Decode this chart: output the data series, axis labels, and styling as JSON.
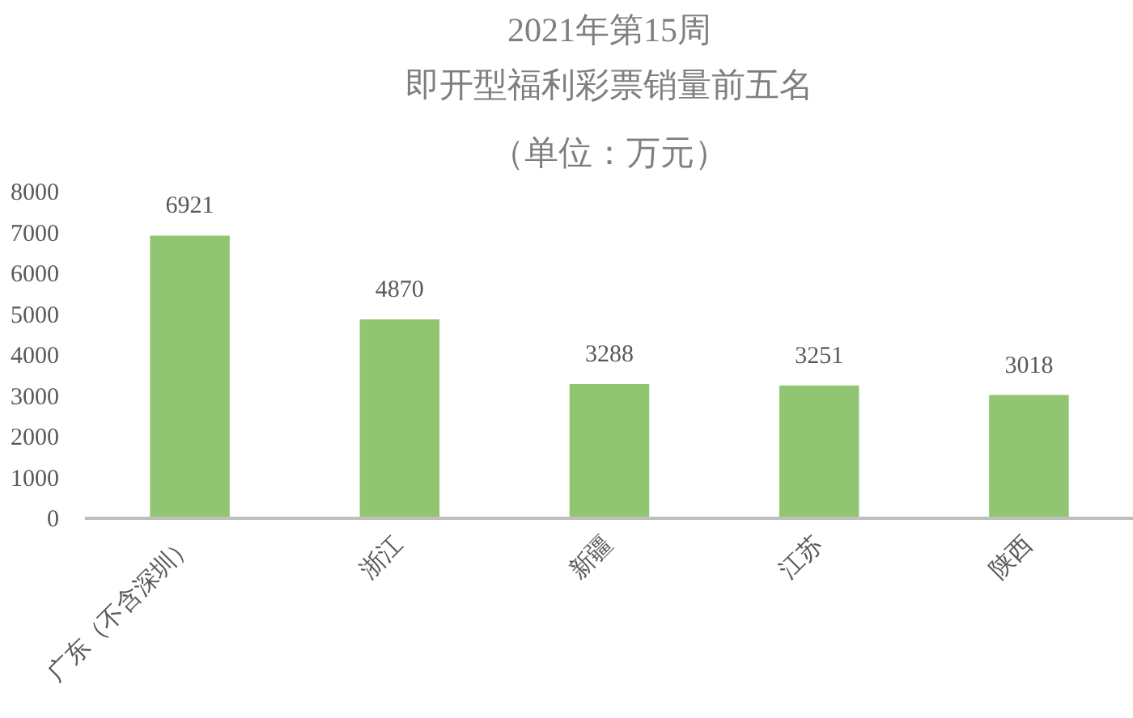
{
  "chart_data": {
    "type": "bar",
    "title": "2021年第15周",
    "subtitle": "即开型福利彩票销量前五名",
    "annotations": [
      "（单位：万元）"
    ],
    "categories": [
      "广东（不含深圳）",
      "浙江",
      "新疆",
      "江苏",
      "陕西"
    ],
    "values": [
      6921,
      4870,
      3288,
      3251,
      3018
    ],
    "color": "#92c572",
    "ylim": [
      0,
      8000
    ],
    "yticks": [
      0,
      1000,
      2000,
      3000,
      4000,
      5000,
      6000,
      7000,
      8000
    ],
    "data_labels": true
  }
}
